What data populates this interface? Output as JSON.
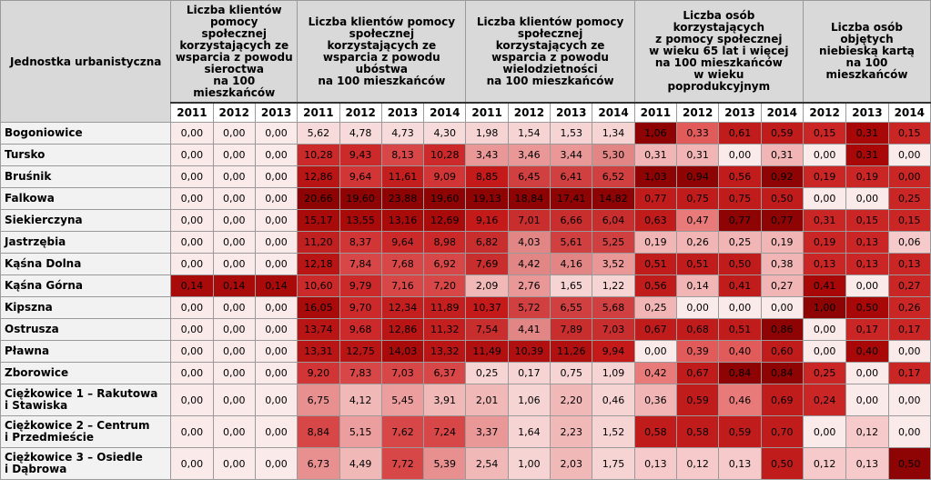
{
  "table": {
    "corner_label": "Jednostka urbanistyczna",
    "groups": [
      {
        "label": "Liczba klientów pomocy\nspołecznej\nkorzystających ze\nwsparcia z powodu\nsieroctwa\nna 100 mieszkańców",
        "years": [
          "2011",
          "2012",
          "2013"
        ]
      },
      {
        "label": "Liczba klientów pomocy\nspołecznej\nkorzystających ze\nwsparcia z powodu\nubóstwa\nna 100 mieszkańców",
        "years": [
          "2011",
          "2012",
          "2013",
          "2014"
        ]
      },
      {
        "label": "Liczba klientów pomocy\nspołecznej\nkorzystających ze\nwsparcia z powodu\nwielodzietności\nna 100 mieszkańców",
        "years": [
          "2011",
          "2012",
          "2013",
          "2014"
        ]
      },
      {
        "label": "Liczba osób\nkorzystających\nz pomocy społecznej\nw wieku 65 lat i więcej\nna 100 mieszkańców\nw wieku\npoprodukcyjnym",
        "years": [
          "2011",
          "2012",
          "2013",
          "2014"
        ]
      },
      {
        "label": "Liczba osób objętych\nniebieską kartą\nna 100 mieszkańców",
        "years": [
          "2012",
          "2013",
          "2014"
        ]
      }
    ],
    "rows": [
      {
        "name": "Bogoniowice",
        "values": [
          "0,00",
          "0,00",
          "0,00",
          "5,62",
          "4,78",
          "4,73",
          "4,30",
          "1,98",
          "1,54",
          "1,53",
          "1,34",
          "1,06",
          "0,33",
          "0,61",
          "0,59",
          "0,15",
          "0,31",
          "0,15"
        ]
      },
      {
        "name": "Tursko",
        "values": [
          "0,00",
          "0,00",
          "0,00",
          "10,28",
          "9,43",
          "8,13",
          "10,28",
          "3,43",
          "3,46",
          "3,44",
          "5,30",
          "0,31",
          "0,31",
          "0,00",
          "0,31",
          "0,00",
          "0,31",
          "0,00"
        ]
      },
      {
        "name": "Bruśnik",
        "values": [
          "0,00",
          "0,00",
          "0,00",
          "12,86",
          "9,64",
          "11,61",
          "9,09",
          "8,85",
          "6,45",
          "6,41",
          "6,52",
          "1,03",
          "0,94",
          "0,56",
          "0,92",
          "0,19",
          "0,19",
          "0,00"
        ]
      },
      {
        "name": "Falkowa",
        "values": [
          "0,00",
          "0,00",
          "0,00",
          "20,66",
          "19,60",
          "23,88",
          "19,60",
          "19,13",
          "18,84",
          "17,41",
          "14,82",
          "0,77",
          "0,75",
          "0,75",
          "0,50",
          "0,00",
          "0,00",
          "0,25"
        ]
      },
      {
        "name": "Siekierczyna",
        "values": [
          "0,00",
          "0,00",
          "0,00",
          "15,17",
          "13,55",
          "13,16",
          "12,69",
          "9,16",
          "7,01",
          "6,66",
          "6,04",
          "0,63",
          "0,47",
          "0,77",
          "0,77",
          "0,31",
          "0,15",
          "0,15"
        ]
      },
      {
        "name": "Jastrzębia",
        "values": [
          "0,00",
          "0,00",
          "0,00",
          "11,20",
          "8,37",
          "9,64",
          "8,98",
          "6,82",
          "4,03",
          "5,61",
          "5,25",
          "0,19",
          "0,26",
          "0,25",
          "0,19",
          "0,19",
          "0,13",
          "0,06"
        ]
      },
      {
        "name": "Kąśna Dolna",
        "values": [
          "0,00",
          "0,00",
          "0,00",
          "12,18",
          "7,84",
          "7,68",
          "6,92",
          "7,69",
          "4,42",
          "4,16",
          "3,52",
          "0,51",
          "0,51",
          "0,50",
          "0,38",
          "0,13",
          "0,13",
          "0,13"
        ]
      },
      {
        "name": "Kąśna Górna",
        "values": [
          "0,14",
          "0,14",
          "0,14",
          "10,60",
          "9,79",
          "7,16",
          "7,20",
          "2,09",
          "2,76",
          "1,65",
          "1,22",
          "0,56",
          "0,14",
          "0,41",
          "0,27",
          "0,41",
          "0,00",
          "0,27"
        ]
      },
      {
        "name": "Kipszna",
        "values": [
          "0,00",
          "0,00",
          "0,00",
          "16,05",
          "9,70",
          "12,34",
          "11,89",
          "10,37",
          "5,72",
          "6,55",
          "5,68",
          "0,25",
          "0,00",
          "0,00",
          "0,00",
          "1,00",
          "0,50",
          "0,26"
        ]
      },
      {
        "name": "Ostrusza",
        "values": [
          "0,00",
          "0,00",
          "0,00",
          "13,74",
          "9,68",
          "12,86",
          "11,32",
          "7,54",
          "4,41",
          "7,89",
          "7,03",
          "0,67",
          "0,68",
          "0,51",
          "0,86",
          "0,00",
          "0,17",
          "0,17"
        ]
      },
      {
        "name": "Pławna",
        "values": [
          "0,00",
          "0,00",
          "0,00",
          "13,31",
          "12,75",
          "14,03",
          "13,32",
          "11,49",
          "10,39",
          "11,26",
          "9,94",
          "0,00",
          "0,39",
          "0,40",
          "0,60",
          "0,00",
          "0,40",
          "0,00"
        ]
      },
      {
        "name": "Zborowice",
        "values": [
          "0,00",
          "0,00",
          "0,00",
          "9,20",
          "7,83",
          "7,03",
          "6,37",
          "0,25",
          "0,17",
          "0,75",
          "1,09",
          "0,42",
          "0,67",
          "0,84",
          "0,84",
          "0,25",
          "0,00",
          "0,17"
        ]
      },
      {
        "name": "Ciężkowice 1 – Rakutowa\ni Stawiska",
        "values": [
          "0,00",
          "0,00",
          "0,00",
          "6,75",
          "4,12",
          "5,45",
          "3,91",
          "2,01",
          "1,06",
          "2,20",
          "0,46",
          "0,36",
          "0,59",
          "0,46",
          "0,69",
          "0,24",
          "0,00",
          "0,00"
        ]
      },
      {
        "name": "Ciężkowice 2 – Centrum\ni Przedmieście",
        "values": [
          "0,00",
          "0,00",
          "0,00",
          "8,84",
          "5,15",
          "7,62",
          "7,24",
          "3,37",
          "1,64",
          "2,23",
          "1,52",
          "0,58",
          "0,58",
          "0,59",
          "0,70",
          "0,00",
          "0,12",
          "0,00"
        ]
      },
      {
        "name": "Ciężkowice 3 – Osiedle\ni Dąbrowa",
        "values": [
          "0,00",
          "0,00",
          "0,00",
          "6,73",
          "4,49",
          "7,72",
          "5,39",
          "2,54",
          "1,00",
          "2,03",
          "1,75",
          "0,13",
          "0,12",
          "0,13",
          "0,50",
          "0,12",
          "0,13",
          "0,50"
        ]
      }
    ],
    "cell_colors": [
      [
        "#fbeaea",
        "#fbeaea",
        "#fbeaea",
        "#f7dada",
        "#f7dada",
        "#f7dada",
        "#f7dada",
        "#f6d4d4",
        "#f6d4d4",
        "#f6d4d4",
        "#f6d4d4",
        "#8e0303",
        "#e25b5b",
        "#c11c1c",
        "#c11c1c",
        "#cb2626",
        "#a80808",
        "#cb2626"
      ],
      [
        "#fbeaea",
        "#fbeaea",
        "#fbeaea",
        "#cc2a2a",
        "#cc2a2a",
        "#d84747",
        "#cc2a2a",
        "#e99797",
        "#e99797",
        "#e99797",
        "#e18585",
        "#f1b5b5",
        "#f1b5b5",
        "#fbeaea",
        "#f1b5b5",
        "#fbeaea",
        "#a80808",
        "#fbeaea"
      ],
      [
        "#fbeaea",
        "#fbeaea",
        "#fbeaea",
        "#b91515",
        "#d23535",
        "#c31f1f",
        "#d23535",
        "#c51a1a",
        "#d14040",
        "#d14040",
        "#d14040",
        "#8e0303",
        "#8e0303",
        "#c11c1c",
        "#8e0303",
        "#cb2626",
        "#cb2626",
        "#cb2626"
      ],
      [
        "#fbeaea",
        "#fbeaea",
        "#fbeaea",
        "#8e0303",
        "#8e0303",
        "#8e0303",
        "#8e0303",
        "#8e0303",
        "#8e0303",
        "#8e0303",
        "#8e0303",
        "#c11c1c",
        "#c11c1c",
        "#c11c1c",
        "#c11c1c",
        "#fbeaea",
        "#fbeaea",
        "#cb2626"
      ],
      [
        "#fbeaea",
        "#fbeaea",
        "#fbeaea",
        "#a90a0a",
        "#a90a0a",
        "#a90a0a",
        "#a90a0a",
        "#c51a1a",
        "#c92e2e",
        "#c92e2e",
        "#c92e2e",
        "#c11c1c",
        "#e87a7a",
        "#8e0303",
        "#8e0303",
        "#cb2626",
        "#cb2626",
        "#cb2626"
      ],
      [
        "#fbeaea",
        "#fbeaea",
        "#fbeaea",
        "#c12020",
        "#d23535",
        "#cc2a2a",
        "#cc2a2a",
        "#c92e2e",
        "#e18585",
        "#d14040",
        "#d14040",
        "#f1b5b5",
        "#f1b5b5",
        "#f1b5b5",
        "#f1b5b5",
        "#cb2626",
        "#cb2626",
        "#f6caca"
      ],
      [
        "#fbeaea",
        "#fbeaea",
        "#fbeaea",
        "#b91515",
        "#d84747",
        "#d84747",
        "#d84747",
        "#c92e2e",
        "#e18585",
        "#e18585",
        "#e99797",
        "#c11c1c",
        "#c11c1c",
        "#c11c1c",
        "#f1b5b5",
        "#cb2626",
        "#cb2626",
        "#cb2626"
      ],
      [
        "#a90a0a",
        "#a90a0a",
        "#a90a0a",
        "#cc2a2a",
        "#cc2a2a",
        "#d84747",
        "#d84747",
        "#f1b8b8",
        "#e99797",
        "#f6d4d4",
        "#f6d4d4",
        "#c11c1c",
        "#f1b5b5",
        "#c11c1c",
        "#f1b5b5",
        "#a80808",
        "#fbeaea",
        "#cb2626"
      ],
      [
        "#fbeaea",
        "#fbeaea",
        "#fbeaea",
        "#a90a0a",
        "#cc2a2a",
        "#c31f1f",
        "#c31f1f",
        "#c51a1a",
        "#d14040",
        "#d14040",
        "#d14040",
        "#f1b5b5",
        "#fbeaea",
        "#fbeaea",
        "#fbeaea",
        "#8e0303",
        "#a80808",
        "#cb2626"
      ],
      [
        "#fbeaea",
        "#fbeaea",
        "#fbeaea",
        "#b91515",
        "#cc2a2a",
        "#b91515",
        "#c31f1f",
        "#c92e2e",
        "#e18585",
        "#c92e2e",
        "#c92e2e",
        "#c11c1c",
        "#c11c1c",
        "#c11c1c",
        "#8e0303",
        "#fbeaea",
        "#cb2626",
        "#cb2626"
      ],
      [
        "#fbeaea",
        "#fbeaea",
        "#fbeaea",
        "#b91515",
        "#b91515",
        "#a90a0a",
        "#b91515",
        "#b01010",
        "#b01010",
        "#b01010",
        "#c51a1a",
        "#fbeaea",
        "#e25b5b",
        "#e25b5b",
        "#c11c1c",
        "#fbeaea",
        "#a80808",
        "#fbeaea"
      ],
      [
        "#fbeaea",
        "#fbeaea",
        "#fbeaea",
        "#d23535",
        "#d84747",
        "#d84747",
        "#d84747",
        "#f6d4d4",
        "#f6d4d4",
        "#f6d4d4",
        "#f6d4d4",
        "#e87a7a",
        "#c11c1c",
        "#8e0303",
        "#8e0303",
        "#cb2626",
        "#fbeaea",
        "#cb2626"
      ],
      [
        "#fbeaea",
        "#fbeaea",
        "#fbeaea",
        "#e89090",
        "#f1b8b8",
        "#ec9d9d",
        "#f1b8b8",
        "#f1b8b8",
        "#f6d4d4",
        "#f1b8b8",
        "#f6d4d4",
        "#f1b5b5",
        "#c11c1c",
        "#e87a7a",
        "#c11c1c",
        "#cb2626",
        "#fbeaea",
        "#fbeaea"
      ],
      [
        "#fbeaea",
        "#fbeaea",
        "#fbeaea",
        "#d84747",
        "#ec9d9d",
        "#d84747",
        "#d84747",
        "#e99797",
        "#f6d4d4",
        "#f1b8b8",
        "#f6d4d4",
        "#c11c1c",
        "#c11c1c",
        "#c11c1c",
        "#c11c1c",
        "#fbeaea",
        "#f6caca",
        "#fbeaea"
      ],
      [
        "#fbeaea",
        "#fbeaea",
        "#fbeaea",
        "#e89090",
        "#f1b8b8",
        "#d84747",
        "#e89090",
        "#f1b8b8",
        "#f6d4d4",
        "#f1b8b8",
        "#f6d4d4",
        "#f6caca",
        "#f6caca",
        "#f6caca",
        "#c11c1c",
        "#f6caca",
        "#f6caca",
        "#8e0303"
      ]
    ]
  }
}
